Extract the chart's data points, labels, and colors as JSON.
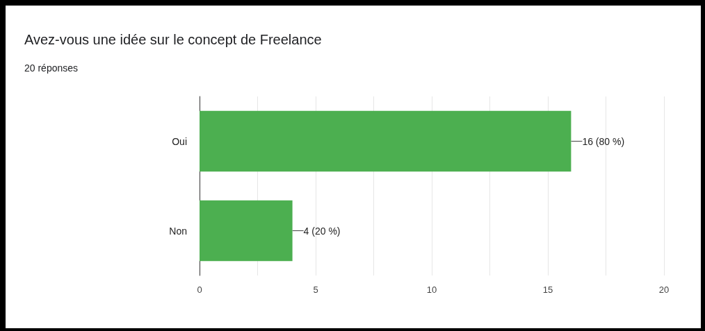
{
  "chart_data": {
    "type": "bar",
    "orientation": "horizontal",
    "title": "Avez-vous une idée sur le concept de Freelance",
    "subtitle": "20 réponses",
    "categories": [
      "Oui",
      "Non"
    ],
    "values": [
      16,
      4
    ],
    "color": "#4caf50",
    "value_labels": [
      "16 (80 %)",
      "4 (20 %)"
    ],
    "xlim": [
      0,
      20
    ],
    "xticks": [
      0,
      {
        "value": 2.5,
        "label": null
      },
      5,
      {
        "value": 7.5,
        "label": null
      },
      10,
      {
        "value": 12.5,
        "label": null
      },
      15,
      {
        "value": 17.5,
        "label": null
      },
      20
    ],
    "grid": true
  }
}
